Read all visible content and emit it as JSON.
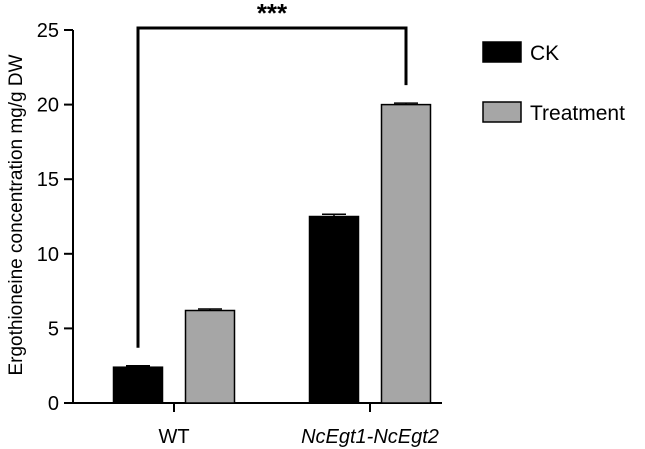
{
  "chart_data": {
    "type": "bar",
    "categories": [
      "WT",
      "NcEgt1-NcEgt2"
    ],
    "category_italic": [
      false,
      true
    ],
    "series": [
      {
        "name": "CK",
        "color": "#000000",
        "values": [
          2.4,
          12.5
        ],
        "errors": [
          0.1,
          0.15
        ]
      },
      {
        "name": "Treatment",
        "color": "#a6a6a6",
        "values": [
          6.2,
          20.0
        ],
        "errors": [
          0.1,
          0.1
        ]
      }
    ],
    "ylabel": "Ergothioneine concentration mg/g DW",
    "xlabel": "",
    "ylim": [
      0,
      25
    ],
    "yticks": [
      0,
      5,
      10,
      15,
      20,
      25
    ],
    "legend_position": "top-right",
    "grid": false,
    "significance": {
      "label": "***",
      "from_series": 0,
      "from_category": 0,
      "to_series": 1,
      "to_category": 1
    }
  }
}
